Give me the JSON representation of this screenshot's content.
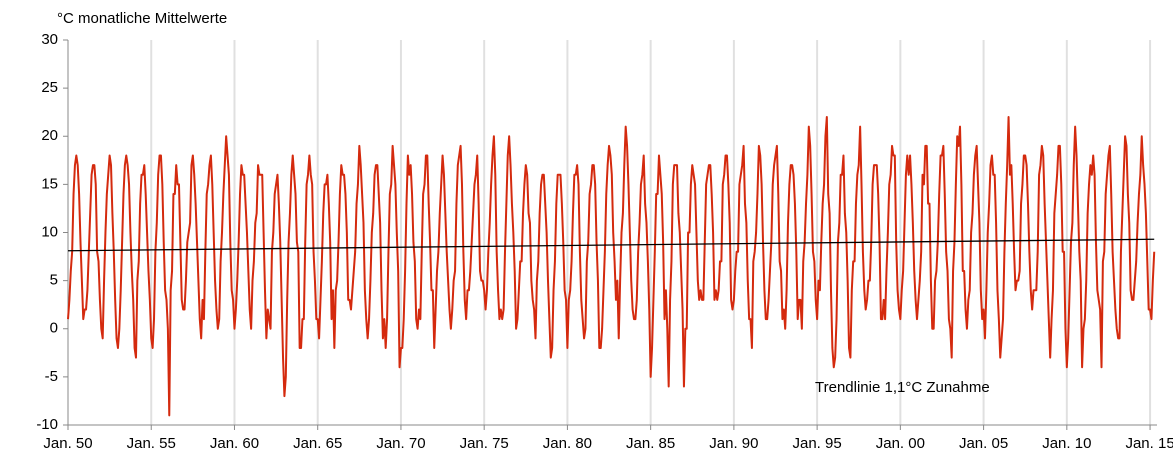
{
  "chart_data": {
    "type": "line",
    "title": "°C  monatliche Mittelwerte",
    "annotation": "Trendlinie 1,1°C Zunahme",
    "color": "#d42a0e",
    "values": [
      1,
      3,
      6,
      8,
      14,
      17,
      18,
      17,
      14,
      9,
      5,
      1,
      2,
      2,
      4,
      8,
      12,
      16,
      17,
      17,
      15,
      8,
      7,
      3,
      0,
      -1,
      5,
      10,
      14,
      16,
      18,
      17,
      12,
      8,
      3,
      -1,
      -2,
      0,
      4,
      9,
      14,
      17,
      18,
      17,
      15,
      10,
      6,
      3,
      -2,
      -3,
      5,
      7,
      13,
      16,
      16,
      17,
      14,
      10,
      6,
      3,
      -1,
      -2,
      1,
      8,
      11,
      16,
      18,
      18,
      15,
      9,
      4,
      3,
      0,
      -9,
      4,
      6,
      14,
      14,
      17,
      15,
      15,
      9,
      3,
      2,
      2,
      5,
      9,
      10,
      11,
      17,
      18,
      16,
      13,
      9,
      5,
      1,
      -1,
      3,
      1,
      8,
      14,
      15,
      17,
      18,
      15,
      10,
      5,
      2,
      0,
      1,
      7,
      10,
      14,
      17,
      20,
      18,
      16,
      9,
      4,
      3,
      0,
      2,
      5,
      9,
      14,
      17,
      16,
      16,
      13,
      10,
      6,
      2,
      0,
      5,
      7,
      11,
      12,
      17,
      16,
      16,
      16,
      10,
      4,
      -1,
      2,
      1,
      0,
      8,
      10,
      14,
      15,
      16,
      13,
      9,
      3,
      -3,
      -7,
      -5,
      3,
      9,
      12,
      16,
      18,
      16,
      14,
      9,
      8,
      -2,
      -2,
      1,
      1,
      9,
      15,
      16,
      18,
      16,
      15,
      8,
      5,
      1,
      1,
      -1,
      3,
      7,
      12,
      15,
      15,
      16,
      13,
      9,
      1,
      4,
      -2,
      4,
      5,
      9,
      14,
      17,
      16,
      16,
      14,
      10,
      3,
      3,
      2,
      4,
      6,
      8,
      13,
      15,
      19,
      17,
      14,
      11,
      4,
      1,
      -1,
      1,
      5,
      10,
      12,
      16,
      17,
      17,
      14,
      11,
      4,
      -1,
      1,
      -2,
      1,
      8,
      14,
      15,
      19,
      17,
      15,
      10,
      6,
      -4,
      -2,
      -2,
      1,
      6,
      13,
      18,
      16,
      17,
      14,
      9,
      7,
      1,
      0,
      2,
      1,
      8,
      14,
      15,
      18,
      18,
      13,
      9,
      4,
      4,
      -2,
      2,
      6,
      8,
      12,
      15,
      18,
      16,
      12,
      8,
      5,
      2,
      0,
      2,
      5,
      6,
      13,
      17,
      18,
      19,
      15,
      8,
      3,
      1,
      4,
      4,
      6,
      9,
      12,
      15,
      16,
      18,
      13,
      6,
      5,
      5,
      4,
      2,
      4,
      8,
      11,
      15,
      18,
      20,
      16,
      8,
      4,
      1,
      2,
      1,
      2,
      8,
      13,
      18,
      20,
      17,
      13,
      10,
      6,
      0,
      1,
      4,
      7,
      7,
      12,
      15,
      17,
      16,
      12,
      11,
      5,
      3,
      2,
      -1,
      5,
      7,
      12,
      15,
      16,
      16,
      13,
      10,
      5,
      1,
      -3,
      -2,
      4,
      7,
      13,
      16,
      16,
      16,
      13,
      9,
      4,
      3,
      -2,
      3,
      4,
      7,
      12,
      16,
      16,
      17,
      15,
      8,
      3,
      1,
      -1,
      0,
      7,
      9,
      14,
      15,
      17,
      17,
      15,
      9,
      5,
      -2,
      -2,
      0,
      4,
      8,
      14,
      17,
      19,
      18,
      16,
      10,
      7,
      3,
      5,
      -1,
      5,
      10,
      12,
      17,
      21,
      19,
      15,
      10,
      5,
      2,
      1,
      1,
      3,
      8,
      11,
      15,
      16,
      18,
      13,
      11,
      7,
      2,
      -5,
      -2,
      3,
      8,
      14,
      14,
      18,
      16,
      14,
      9,
      1,
      4,
      0,
      -6,
      3,
      7,
      15,
      17,
      17,
      17,
      12,
      10,
      6,
      2,
      -6,
      0,
      0,
      10,
      10,
      15,
      17,
      16,
      15,
      10,
      5,
      3,
      4,
      3,
      3,
      9,
      15,
      16,
      17,
      17,
      14,
      10,
      3,
      4,
      3,
      4,
      7,
      7,
      15,
      16,
      18,
      18,
      15,
      11,
      3,
      2,
      3,
      6,
      8,
      8,
      15,
      16,
      17,
      19,
      13,
      11,
      5,
      1,
      1,
      -2,
      7,
      8,
      10,
      14,
      19,
      18,
      15,
      9,
      4,
      1,
      1,
      3,
      6,
      9,
      15,
      17,
      18,
      19,
      14,
      7,
      6,
      1,
      2,
      0,
      4,
      11,
      15,
      17,
      17,
      16,
      13,
      8,
      1,
      3,
      3,
      0,
      7,
      9,
      13,
      16,
      21,
      19,
      14,
      8,
      7,
      3,
      1,
      5,
      4,
      9,
      13,
      15,
      20,
      22,
      14,
      12,
      4,
      -2,
      -4,
      -3,
      1,
      9,
      11,
      16,
      16,
      18,
      12,
      10,
      5,
      -2,
      -3,
      4,
      7,
      7,
      13,
      16,
      17,
      21,
      15,
      8,
      4,
      2,
      3,
      5,
      5,
      9,
      15,
      17,
      17,
      17,
      14,
      9,
      1,
      1,
      3,
      1,
      6,
      10,
      15,
      16,
      19,
      18,
      18,
      9,
      4,
      2,
      1,
      4,
      6,
      11,
      16,
      18,
      16,
      18,
      15,
      11,
      6,
      3,
      1,
      3,
      5,
      8,
      16,
      15,
      19,
      19,
      13,
      13,
      5,
      0,
      0,
      5,
      6,
      9,
      14,
      18,
      18,
      19,
      14,
      8,
      6,
      1,
      0,
      -3,
      6,
      9,
      15,
      20,
      19,
      21,
      15,
      6,
      6,
      2,
      0,
      3,
      4,
      10,
      12,
      16,
      18,
      19,
      15,
      11,
      4,
      1,
      2,
      -1,
      4,
      10,
      13,
      17,
      18,
      16,
      16,
      11,
      4,
      1,
      -3,
      -1,
      1,
      8,
      13,
      17,
      22,
      16,
      17,
      13,
      8,
      4,
      5,
      5,
      6,
      13,
      15,
      18,
      18,
      17,
      13,
      8,
      4,
      2,
      4,
      4,
      4,
      8,
      16,
      17,
      19,
      18,
      13,
      9,
      5,
      1,
      -3,
      1,
      4,
      12,
      14,
      16,
      19,
      19,
      15,
      8,
      8,
      0,
      -4,
      -1,
      4,
      9,
      11,
      17,
      21,
      18,
      13,
      8,
      5,
      -4,
      0,
      1,
      5,
      12,
      15,
      17,
      16,
      18,
      16,
      9,
      4,
      3,
      2,
      -4,
      7,
      8,
      14,
      16,
      18,
      19,
      14,
      8,
      5,
      2,
      0,
      -1,
      -1,
      8,
      12,
      16,
      20,
      19,
      14,
      11,
      4,
      3,
      3,
      5,
      7,
      11,
      14,
      16,
      20,
      17,
      15,
      12,
      7,
      2,
      2,
      1,
      5,
      8
    ],
    "trend": {
      "x": [
        0,
        783
      ],
      "values": [
        8.1,
        9.3
      ],
      "color": "#000000"
    },
    "xlim": [
      0,
      785
    ],
    "xticks": [
      {
        "value": 0,
        "label": "Jan. 50"
      },
      {
        "value": 60,
        "label": "Jan. 55"
      },
      {
        "value": 120,
        "label": "Jan. 60"
      },
      {
        "value": 180,
        "label": "Jan. 65"
      },
      {
        "value": 240,
        "label": "Jan. 70"
      },
      {
        "value": 300,
        "label": "Jan. 75"
      },
      {
        "value": 360,
        "label": "Jan. 80"
      },
      {
        "value": 420,
        "label": "Jan. 85"
      },
      {
        "value": 480,
        "label": "Jan. 90"
      },
      {
        "value": 540,
        "label": "Jan. 95"
      },
      {
        "value": 600,
        "label": "Jan. 00"
      },
      {
        "value": 660,
        "label": "Jan. 05"
      },
      {
        "value": 720,
        "label": "Jan. 10"
      },
      {
        "value": 780,
        "label": "Jan. 15"
      }
    ],
    "ylim": [
      -10,
      30
    ],
    "yticks": [
      -10,
      -5,
      0,
      5,
      10,
      15,
      20,
      25,
      30
    ],
    "grid": true
  }
}
